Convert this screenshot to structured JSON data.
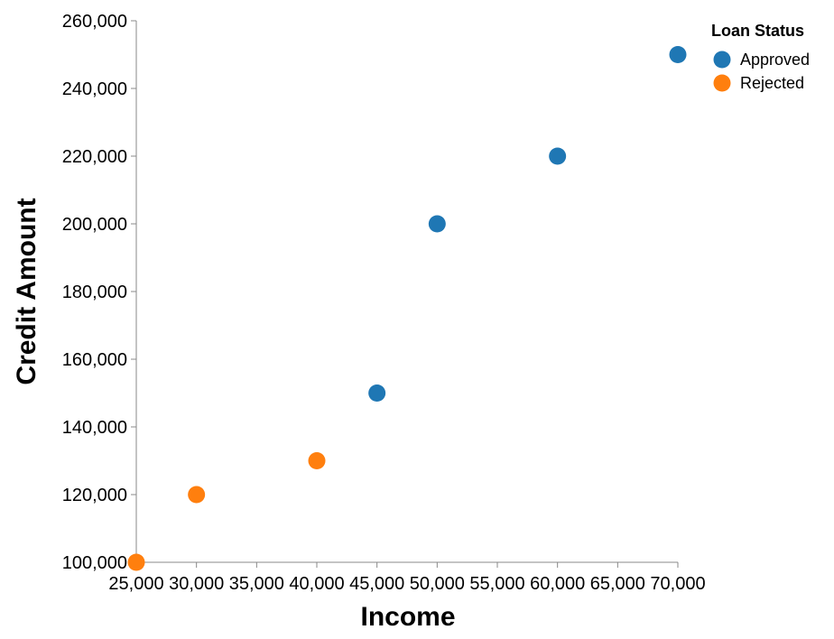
{
  "chart_data": {
    "type": "scatter",
    "xlabel": "Income",
    "ylabel": "Credit Amount",
    "xlim": [
      25000,
      70000
    ],
    "ylim": [
      100000,
      260000
    ],
    "x_ticks": [
      25000,
      30000,
      35000,
      40000,
      45000,
      50000,
      55000,
      60000,
      65000,
      70000
    ],
    "x_tick_labels": [
      "25,000",
      "30,000",
      "35,000",
      "40,000",
      "45,000",
      "50,000",
      "55,000",
      "60,000",
      "65,000",
      "70,000"
    ],
    "y_ticks": [
      100000,
      120000,
      140000,
      160000,
      180000,
      200000,
      220000,
      240000,
      260000
    ],
    "y_tick_labels": [
      "100,000",
      "120,000",
      "140,000",
      "160,000",
      "180,000",
      "200,000",
      "220,000",
      "240,000",
      "260,000"
    ],
    "grid": false,
    "legend": {
      "title": "Loan Status",
      "placement": "top-right"
    },
    "series": [
      {
        "name": "Approved",
        "color": "#1f77b4",
        "points": [
          {
            "x": 45000,
            "y": 150000
          },
          {
            "x": 50000,
            "y": 200000
          },
          {
            "x": 60000,
            "y": 220000
          },
          {
            "x": 70000,
            "y": 250000
          }
        ]
      },
      {
        "name": "Rejected",
        "color": "#ff7f0e",
        "points": [
          {
            "x": 25000,
            "y": 100000
          },
          {
            "x": 30000,
            "y": 120000
          },
          {
            "x": 40000,
            "y": 130000
          }
        ]
      }
    ]
  }
}
